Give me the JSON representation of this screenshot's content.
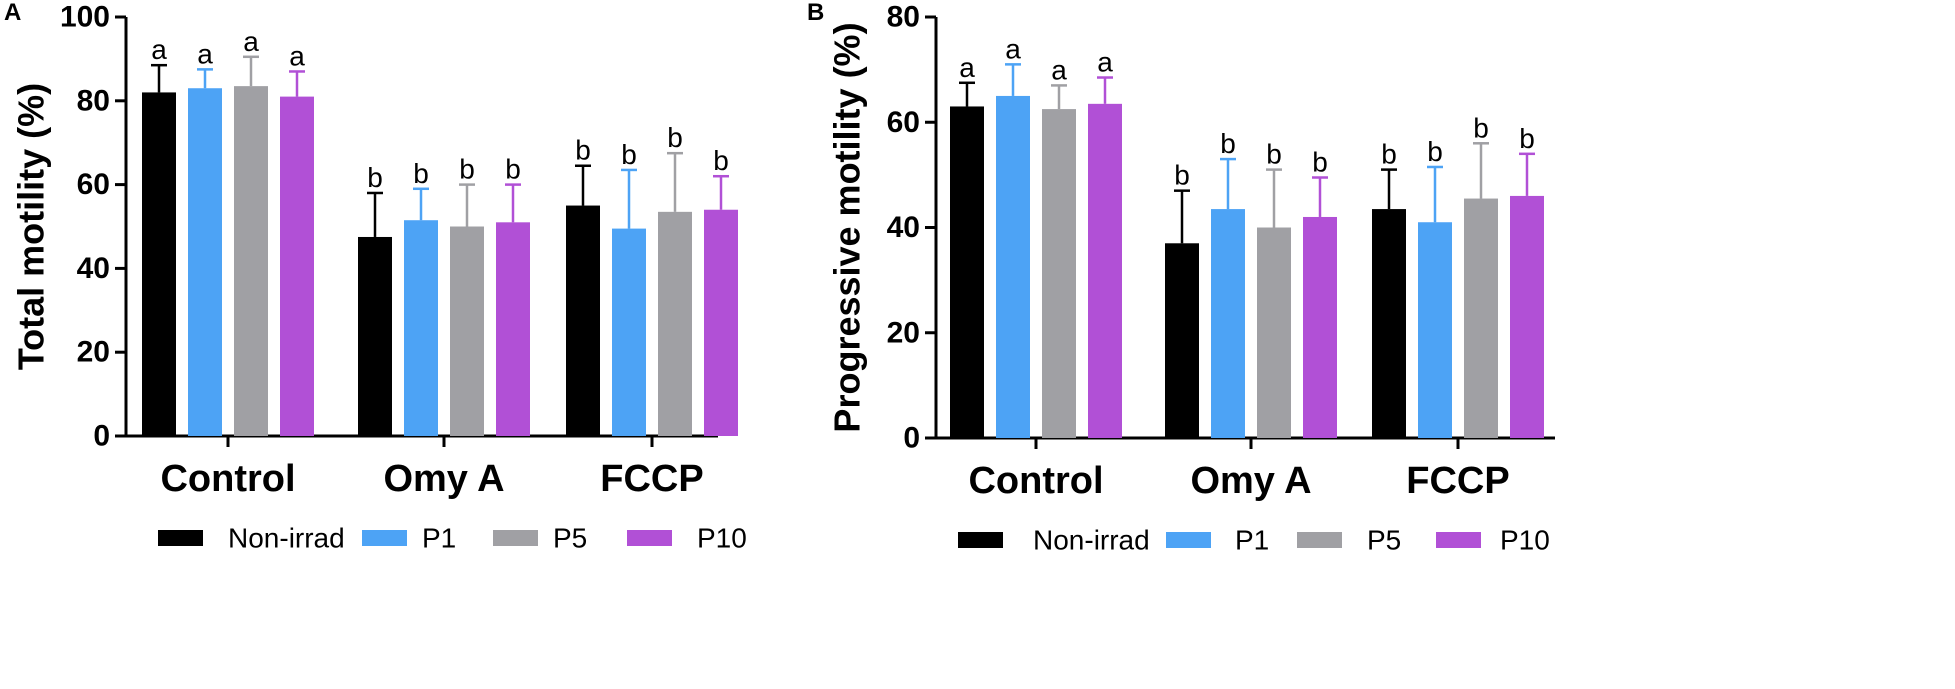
{
  "chart_data": [
    {
      "panel": "A",
      "type": "bar",
      "title": "",
      "xlabel": "",
      "ylabel": "Total motility (%)",
      "ylim": [
        0,
        100
      ],
      "yticks": [
        0,
        20,
        40,
        60,
        80,
        100
      ],
      "categories": [
        "Control",
        "Omy A",
        "FCCP"
      ],
      "series": [
        {
          "name": "Non-irrad",
          "color": "#000000",
          "values": [
            82,
            47.5,
            55
          ],
          "errors": [
            6.5,
            10.5,
            9.5
          ],
          "labels": [
            "a",
            "b",
            "b"
          ]
        },
        {
          "name": "P1",
          "color": "#4da3f5",
          "values": [
            83,
            51.5,
            49.5
          ],
          "errors": [
            4.5,
            7.5,
            14
          ],
          "labels": [
            "a",
            "b",
            "b"
          ]
        },
        {
          "name": "P5",
          "color": "#a0a0a4",
          "values": [
            83.5,
            50,
            53.5
          ],
          "errors": [
            7,
            10,
            14
          ],
          "labels": [
            "a",
            "b",
            "b"
          ]
        },
        {
          "name": "P10",
          "color": "#b150d6",
          "values": [
            81,
            51,
            54
          ],
          "errors": [
            6,
            9,
            8
          ],
          "labels": [
            "a",
            "b",
            "b"
          ]
        }
      ]
    },
    {
      "panel": "B",
      "type": "bar",
      "title": "",
      "xlabel": "",
      "ylabel": "Progressive motility (%)",
      "ylim": [
        0,
        80
      ],
      "yticks": [
        0,
        20,
        40,
        60,
        80
      ],
      "categories": [
        "Control",
        "Omy A",
        "FCCP"
      ],
      "series": [
        {
          "name": "Non-irrad",
          "color": "#000000",
          "values": [
            63,
            37,
            43.5
          ],
          "errors": [
            4.5,
            10,
            7.5
          ],
          "labels": [
            "a",
            "b",
            "b"
          ]
        },
        {
          "name": "P1",
          "color": "#4da3f5",
          "values": [
            65,
            43.5,
            41
          ],
          "errors": [
            6,
            9.5,
            10.5
          ],
          "labels": [
            "a",
            "b",
            "b"
          ]
        },
        {
          "name": "P5",
          "color": "#a0a0a4",
          "values": [
            62.5,
            40,
            45.5
          ],
          "errors": [
            4.5,
            11,
            10.5
          ],
          "labels": [
            "a",
            "b",
            "b"
          ]
        },
        {
          "name": "P10",
          "color": "#b150d6",
          "values": [
            63.5,
            42,
            46
          ],
          "errors": [
            5,
            7.5,
            8
          ],
          "labels": [
            "a",
            "b",
            "b"
          ]
        }
      ]
    }
  ]
}
